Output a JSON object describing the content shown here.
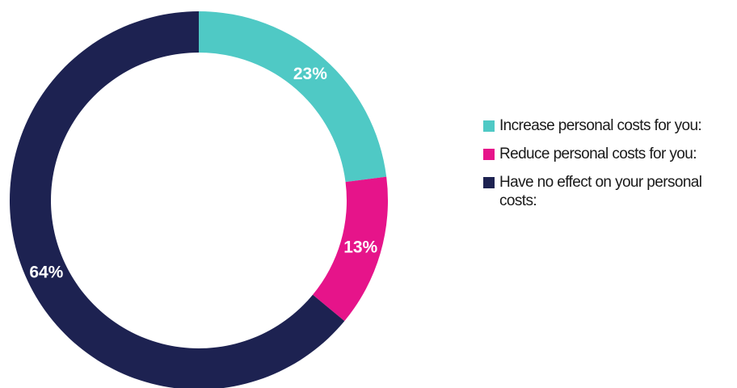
{
  "chart_data": {
    "type": "pie",
    "variant": "donut",
    "categories": [
      "Increase personal costs for you:",
      "Reduce personal costs for you:",
      "Have no effect on your personal costs:"
    ],
    "values": [
      23,
      13,
      64
    ],
    "value_labels": [
      "23%",
      "13%",
      "64%"
    ],
    "colors": [
      "#4fc9c5",
      "#e6148a",
      "#1d2251"
    ],
    "legend_position": "right"
  }
}
